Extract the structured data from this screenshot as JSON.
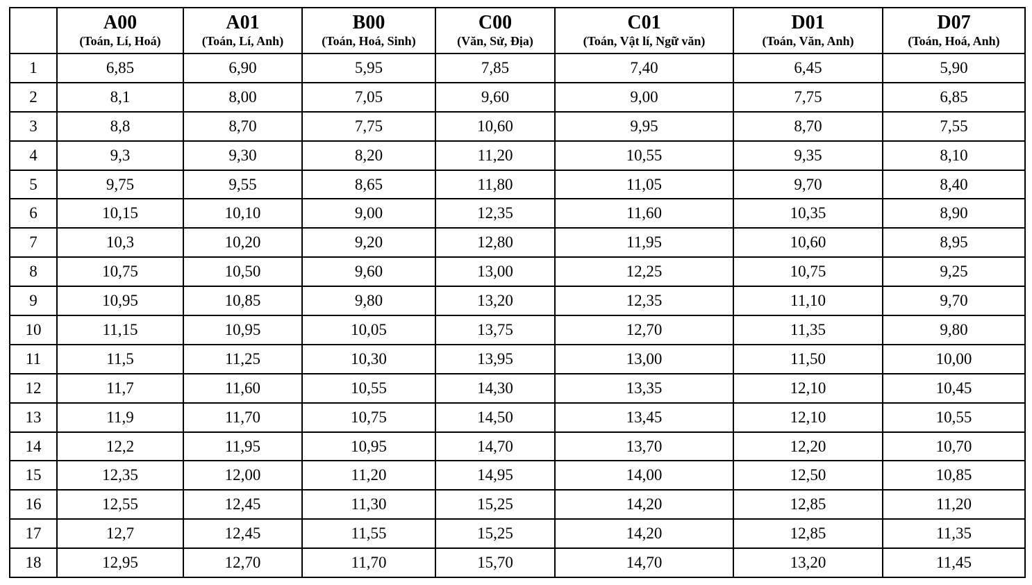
{
  "table": {
    "columns": [
      {
        "code": "",
        "subjects": ""
      },
      {
        "code": "A00",
        "subjects": "(Toán, Lí, Hoá)"
      },
      {
        "code": "A01",
        "subjects": "(Toán, Lí, Anh)"
      },
      {
        "code": "B00",
        "subjects": "(Toán, Hoá, Sinh)"
      },
      {
        "code": "C00",
        "subjects": "(Văn, Sử, Địa)"
      },
      {
        "code": "C01",
        "subjects": "(Toán, Vật lí, Ngữ văn)"
      },
      {
        "code": "D01",
        "subjects": "(Toán, Văn, Anh)"
      },
      {
        "code": "D07",
        "subjects": "(Toán, Hoá, Anh)"
      }
    ],
    "rows": [
      {
        "index": "1",
        "values": [
          "6,85",
          "6,90",
          "5,95",
          "7,85",
          "7,40",
          "6,45",
          "5,90"
        ]
      },
      {
        "index": "2",
        "values": [
          "8,1",
          "8,00",
          "7,05",
          "9,60",
          "9,00",
          "7,75",
          "6,85"
        ]
      },
      {
        "index": "3",
        "values": [
          "8,8",
          "8,70",
          "7,75",
          "10,60",
          "9,95",
          "8,70",
          "7,55"
        ]
      },
      {
        "index": "4",
        "values": [
          "9,3",
          "9,30",
          "8,20",
          "11,20",
          "10,55",
          "9,35",
          "8,10"
        ]
      },
      {
        "index": "5",
        "values": [
          "9,75",
          "9,55",
          "8,65",
          "11,80",
          "11,05",
          "9,70",
          "8,40"
        ]
      },
      {
        "index": "6",
        "values": [
          "10,15",
          "10,10",
          "9,00",
          "12,35",
          "11,60",
          "10,35",
          "8,90"
        ]
      },
      {
        "index": "7",
        "values": [
          "10,3",
          "10,20",
          "9,20",
          "12,80",
          "11,95",
          "10,60",
          "8,95"
        ]
      },
      {
        "index": "8",
        "values": [
          "10,75",
          "10,50",
          "9,60",
          "13,00",
          "12,25",
          "10,75",
          "9,25"
        ]
      },
      {
        "index": "9",
        "values": [
          "10,95",
          "10,85",
          "9,80",
          "13,20",
          "12,35",
          "11,10",
          "9,70"
        ]
      },
      {
        "index": "10",
        "values": [
          "11,15",
          "10,95",
          "10,05",
          "13,75",
          "12,70",
          "11,35",
          "9,80"
        ]
      },
      {
        "index": "11",
        "values": [
          "11,5",
          "11,25",
          "10,30",
          "13,95",
          "13,00",
          "11,50",
          "10,00"
        ]
      },
      {
        "index": "12",
        "values": [
          "11,7",
          "11,60",
          "10,55",
          "14,30",
          "13,35",
          "12,10",
          "10,45"
        ]
      },
      {
        "index": "13",
        "values": [
          "11,9",
          "11,70",
          "10,75",
          "14,50",
          "13,45",
          "12,10",
          "10,55"
        ]
      },
      {
        "index": "14",
        "values": [
          "12,2",
          "11,95",
          "10,95",
          "14,70",
          "13,70",
          "12,20",
          "10,70"
        ]
      },
      {
        "index": "15",
        "values": [
          "12,35",
          "12,00",
          "11,20",
          "14,95",
          "14,00",
          "12,50",
          "10,85"
        ]
      },
      {
        "index": "16",
        "values": [
          "12,55",
          "12,45",
          "11,30",
          "15,25",
          "14,20",
          "12,85",
          "11,20"
        ]
      },
      {
        "index": "17",
        "values": [
          "12,7",
          "12,45",
          "11,55",
          "15,25",
          "14,20",
          "12,85",
          "11,35"
        ]
      },
      {
        "index": "18",
        "values": [
          "12,95",
          "12,70",
          "11,70",
          "15,70",
          "14,70",
          "13,20",
          "11,45"
        ]
      }
    ],
    "colors": {
      "border": "#000000",
      "text": "#000000",
      "background": "#ffffff"
    }
  }
}
